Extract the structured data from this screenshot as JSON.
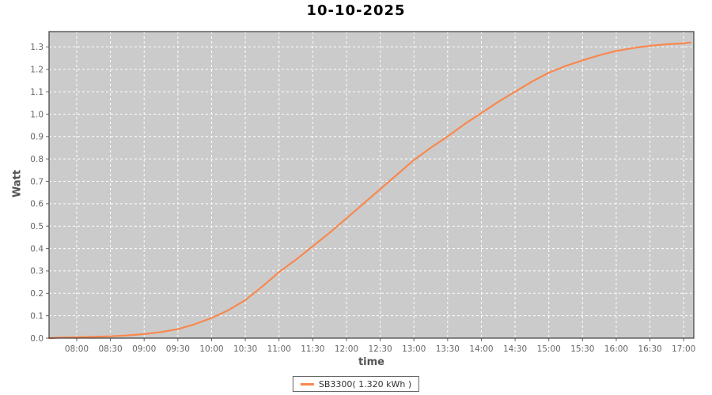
{
  "title": "10-10-2025",
  "legend": {
    "label": "SB3300( 1.320 kWh )"
  },
  "chart_data": {
    "type": "line",
    "title": "10-10-2025",
    "xlabel": "time",
    "ylabel": "Watt",
    "plot_bg": "#CBCBCB",
    "grid_color": "#FFFFFF",
    "grid": "white dashed, on",
    "border_color": "#3C3C3C",
    "tick_color": "#666666",
    "legend_position": "bottom-center",
    "x_range": [
      7.59,
      17.15
    ],
    "y_range": [
      0,
      1.3684
    ],
    "x_ticks": [
      {
        "t": 8.0,
        "label": "08:00"
      },
      {
        "t": 8.5,
        "label": "08:30"
      },
      {
        "t": 9.0,
        "label": "09:00"
      },
      {
        "t": 9.5,
        "label": "09:30"
      },
      {
        "t": 10.0,
        "label": "10:00"
      },
      {
        "t": 10.5,
        "label": "10:30"
      },
      {
        "t": 11.0,
        "label": "11:00"
      },
      {
        "t": 11.5,
        "label": "11:30"
      },
      {
        "t": 12.0,
        "label": "12:00"
      },
      {
        "t": 12.5,
        "label": "12:30"
      },
      {
        "t": 13.0,
        "label": "13:00"
      },
      {
        "t": 13.5,
        "label": "13:30"
      },
      {
        "t": 14.0,
        "label": "14:00"
      },
      {
        "t": 14.5,
        "label": "14:30"
      },
      {
        "t": 15.0,
        "label": "15:00"
      },
      {
        "t": 15.5,
        "label": "15:30"
      },
      {
        "t": 16.0,
        "label": "16:00"
      },
      {
        "t": 16.5,
        "label": "16:30"
      },
      {
        "t": 17.0,
        "label": "17:00"
      }
    ],
    "y_ticks": [
      {
        "v": 0.0,
        "label": "0.0"
      },
      {
        "v": 0.1,
        "label": "0.1"
      },
      {
        "v": 0.2,
        "label": "0.2"
      },
      {
        "v": 0.3,
        "label": "0.3"
      },
      {
        "v": 0.4,
        "label": "0.4"
      },
      {
        "v": 0.5,
        "label": "0.5"
      },
      {
        "v": 0.6,
        "label": "0.6"
      },
      {
        "v": 0.7,
        "label": "0.7"
      },
      {
        "v": 0.8,
        "label": "0.8"
      },
      {
        "v": 0.9,
        "label": "0.9"
      },
      {
        "v": 1.0,
        "label": "1.0"
      },
      {
        "v": 1.1,
        "label": "1.1"
      },
      {
        "v": 1.2,
        "label": "1.2"
      },
      {
        "v": 1.3,
        "label": "1.3"
      }
    ],
    "series": [
      {
        "name": "SB3300( 1.320 kWh )",
        "color": "#F8884E",
        "total_kwh": "1.320",
        "points": [
          [
            7.59,
            0.0
          ],
          [
            7.75,
            0.002
          ],
          [
            8.0,
            0.004
          ],
          [
            8.25,
            0.006
          ],
          [
            8.5,
            0.008
          ],
          [
            8.75,
            0.012
          ],
          [
            9.0,
            0.018
          ],
          [
            9.25,
            0.027
          ],
          [
            9.5,
            0.04
          ],
          [
            9.75,
            0.062
          ],
          [
            10.0,
            0.09
          ],
          [
            10.25,
            0.125
          ],
          [
            10.5,
            0.17
          ],
          [
            10.75,
            0.23
          ],
          [
            11.0,
            0.295
          ],
          [
            11.25,
            0.35
          ],
          [
            11.5,
            0.41
          ],
          [
            11.75,
            0.47
          ],
          [
            12.0,
            0.535
          ],
          [
            12.25,
            0.6
          ],
          [
            12.5,
            0.665
          ],
          [
            12.75,
            0.73
          ],
          [
            13.0,
            0.795
          ],
          [
            13.25,
            0.85
          ],
          [
            13.5,
            0.9
          ],
          [
            13.75,
            0.955
          ],
          [
            14.0,
            1.005
          ],
          [
            14.25,
            1.055
          ],
          [
            14.5,
            1.1
          ],
          [
            14.75,
            1.145
          ],
          [
            15.0,
            1.185
          ],
          [
            15.25,
            1.215
          ],
          [
            15.5,
            1.24
          ],
          [
            15.75,
            1.263
          ],
          [
            16.0,
            1.282
          ],
          [
            16.25,
            1.295
          ],
          [
            16.5,
            1.305
          ],
          [
            16.75,
            1.312
          ],
          [
            17.0,
            1.316
          ],
          [
            17.1,
            1.32
          ]
        ]
      }
    ]
  }
}
